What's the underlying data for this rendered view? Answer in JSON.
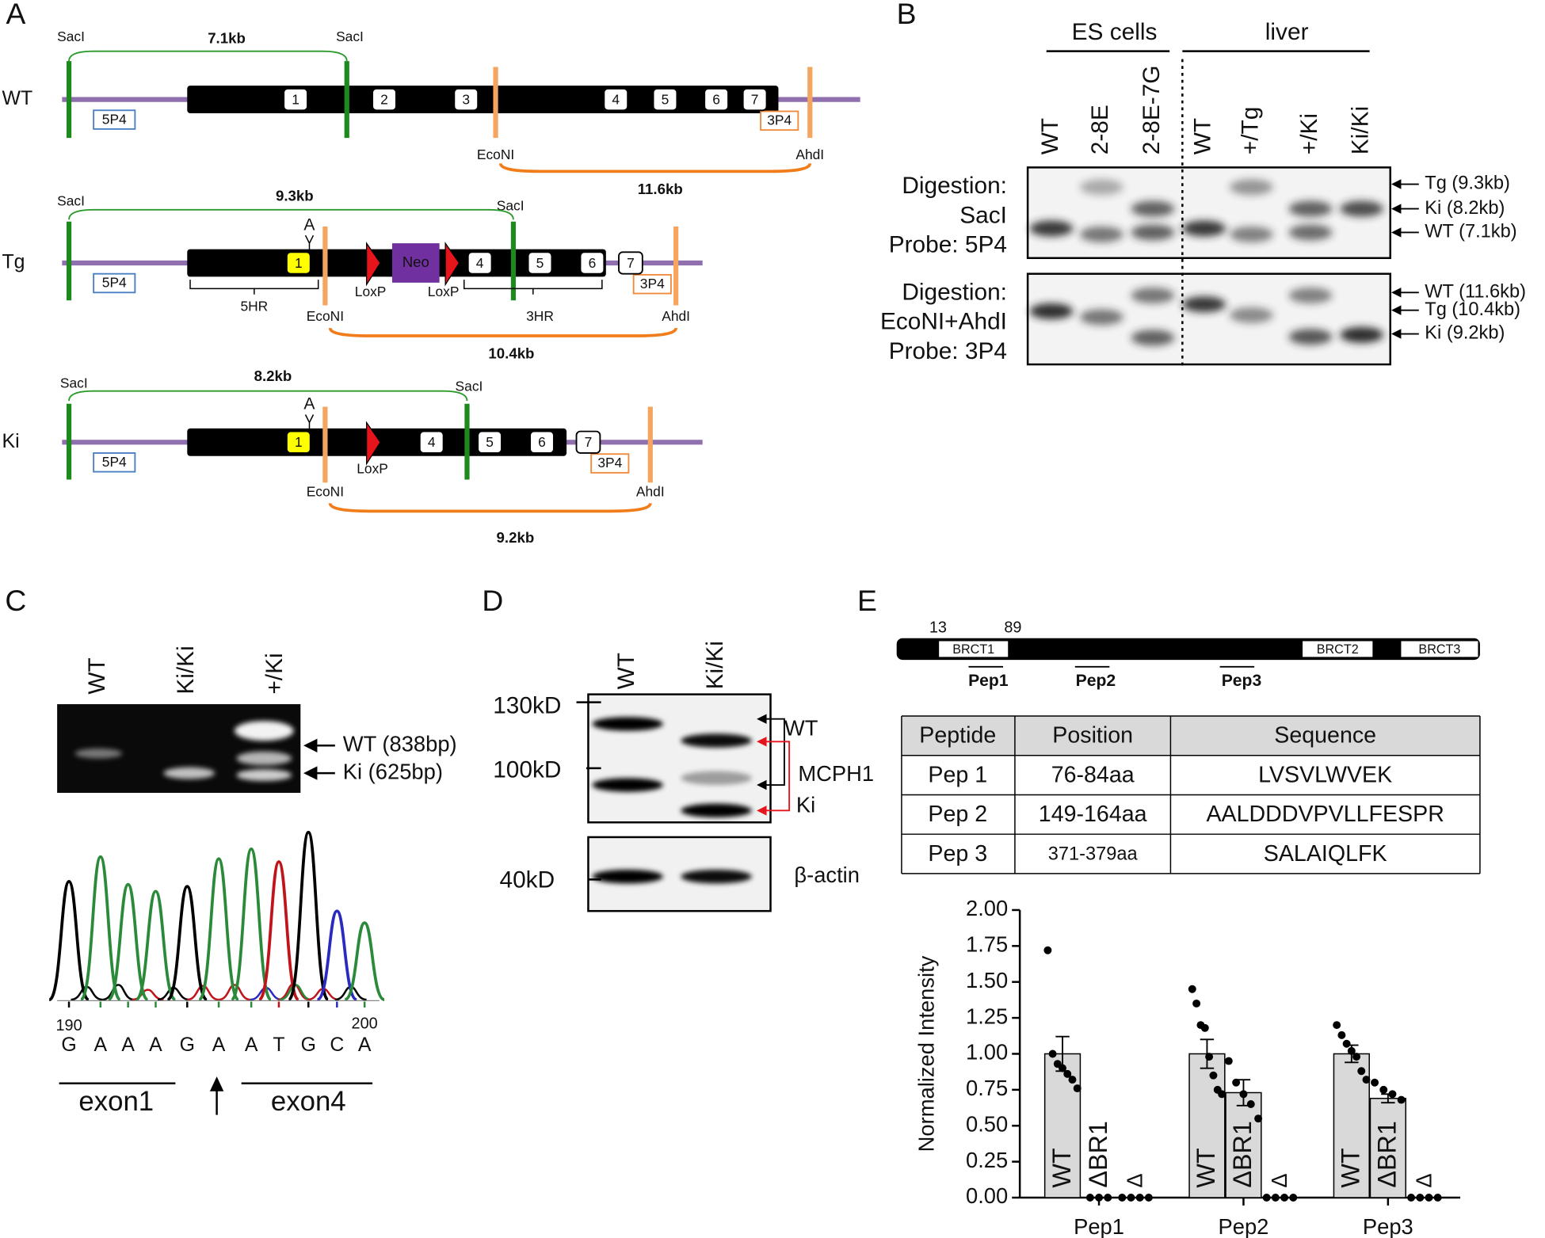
{
  "panel_a": {
    "label": "A",
    "constructs": [
      {
        "name": "WT",
        "saci": [
          "SacI",
          "SacI"
        ],
        "saci_size": "7.1kb",
        "econi": "EcoNI",
        "ahdi": "AhdI",
        "econi_ahdi_size": "11.6kb",
        "probe_5": "5P4",
        "probe_3": "3P4",
        "exons": [
          "1",
          "2",
          "3",
          "4",
          "5",
          "6",
          "7"
        ]
      },
      {
        "name": "Tg",
        "saci": [
          "SacI",
          "SacI"
        ],
        "saci_size": "9.3kb",
        "econi": "EcoNI",
        "ahdi": "AhdI",
        "econi_ahdi_size": "10.4kb",
        "probe_5": "5P4",
        "probe_3": "3P4",
        "exons": [
          "1",
          "4",
          "5",
          "6",
          "7"
        ],
        "insertion": "A",
        "neo": "Neo",
        "loxp": [
          "LoxP",
          "LoxP"
        ],
        "homology_arms": [
          "5HR",
          "3HR"
        ]
      },
      {
        "name": "Ki",
        "saci": [
          "SacI",
          "SacI"
        ],
        "saci_size": "8.2kb",
        "econi": "EcoNI",
        "ahdi": "AhdI",
        "econi_ahdi_size": "9.2kb",
        "probe_5": "5P4",
        "probe_3": "3P4",
        "exons": [
          "1",
          "4",
          "5",
          "6",
          "7"
        ],
        "insertion": "A",
        "loxp": [
          "LoxP"
        ]
      }
    ]
  },
  "panel_b": {
    "label": "B",
    "groups": [
      "ES cells",
      "liver"
    ],
    "lanes": [
      "WT",
      "2-8E",
      "2-8E-7G",
      "WT",
      "+/Tg",
      "+/Ki",
      "Ki/Ki"
    ],
    "blots": [
      {
        "conditions": [
          "Digestion:",
          "SacI",
          "Probe: 5P4"
        ],
        "bands": [
          "Tg (9.3kb)",
          "Ki (8.2kb)",
          "WT (7.1kb)"
        ]
      },
      {
        "conditions": [
          "Digestion:",
          "EcoNI+AhdI",
          "Probe: 3P4"
        ],
        "bands": [
          "WT (11.6kb)",
          "Tg (10.4kb)",
          "Ki (9.2kb)"
        ]
      }
    ]
  },
  "panel_c": {
    "label": "C",
    "lanes": [
      "WT",
      "Ki/Ki",
      "+/Ki"
    ],
    "bands": [
      "WT (838bp)",
      "Ki (625bp)"
    ],
    "positions": [
      "190",
      "200"
    ],
    "sequence": [
      "G",
      "A",
      "A",
      "A",
      "G",
      "A",
      "A",
      "T",
      "G",
      "C",
      "A"
    ],
    "exons": [
      "exon1",
      "exon4"
    ]
  },
  "panel_d": {
    "label": "D",
    "lanes": [
      "WT",
      "Ki/Ki"
    ],
    "markers": [
      "130kD",
      "100kD",
      "40kD"
    ],
    "bands": [
      "WT",
      "Ki"
    ],
    "protein": "MCPH1",
    "loading_control": "β-actin"
  },
  "panel_e": {
    "label": "E",
    "domain_bounds": [
      "13",
      "89"
    ],
    "domains": [
      "BRCT1",
      "BRCT2",
      "BRCT3"
    ],
    "peptides": [
      "Pep1",
      "Pep2",
      "Pep3"
    ],
    "table": {
      "header": [
        "Peptide",
        "Position",
        "Sequence"
      ],
      "rows": [
        [
          "Pep 1",
          "76-84aa",
          "LVSVLWVEK"
        ],
        [
          "Pep 2",
          "149-164aa",
          "AALDDDVPVLLFESPR"
        ],
        [
          "Pep 3",
          "371-379aa",
          "SALAIQLFK"
        ]
      ]
    }
  },
  "chart_data": {
    "type": "bar",
    "ylabel": "Normalized Intensity",
    "categories": [
      "Pep1",
      "Pep2",
      "Pep3"
    ],
    "series": [
      {
        "name": "WT",
        "color": "#d9d9d9",
        "values": [
          1,
          1,
          1
        ],
        "errors": [
          0.12,
          0.1,
          0.06
        ],
        "points": [
          [
            1.72,
            1.0,
            0.93,
            0.9,
            0.86,
            0.82,
            0.76
          ],
          [
            1.45,
            1.35,
            1.2,
            1.18,
            0.98,
            0.85,
            0.75,
            0.72
          ],
          [
            1.2,
            1.13,
            1.07,
            1.02,
            0.98,
            0.88,
            0.82
          ]
        ]
      },
      {
        "name": "ΔBR1",
        "color": "#d9d9d9",
        "values": [
          0,
          0.73,
          0.69
        ],
        "errors": [
          0,
          0.09,
          0.03
        ],
        "points": [
          [
            0,
            0,
            0
          ],
          [
            0.95,
            0.8,
            0.72,
            0.65,
            0.55
          ],
          [
            0.8,
            0.75,
            0.72,
            0.68
          ]
        ]
      },
      {
        "name": "Δ",
        "color": "#d9d9d9",
        "values": [
          0,
          0,
          0
        ],
        "errors": [
          0,
          0,
          0
        ],
        "points": [
          [
            0,
            0,
            0,
            0
          ],
          [
            0,
            0,
            0,
            0
          ],
          [
            0,
            0,
            0,
            0
          ]
        ]
      }
    ],
    "ylim": [
      0,
      2
    ],
    "yticks": [
      {
        "value": 0,
        "label": "0.00"
      },
      {
        "value": 0.25,
        "label": "0.25"
      },
      {
        "value": 0.5,
        "label": "0.50"
      },
      {
        "value": 0.75,
        "label": "0.75"
      },
      {
        "value": 1,
        "label": "1.00"
      },
      {
        "value": 1.25,
        "label": "1.25"
      },
      {
        "value": 1.5,
        "label": "1.50"
      },
      {
        "value": 1.75,
        "label": "1.75"
      },
      {
        "value": 2,
        "label": "2.00"
      }
    ]
  }
}
